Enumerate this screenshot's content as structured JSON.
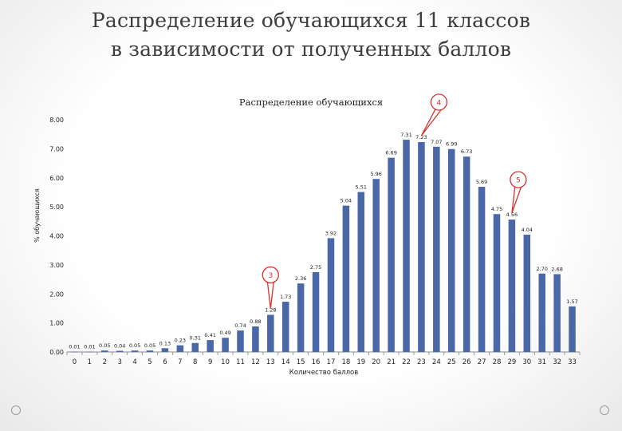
{
  "slide": {
    "title_line1": "Распределение обучающихся 11 классов",
    "title_line2": "в зависимости от полученных баллов"
  },
  "chart_data": {
    "type": "bar",
    "title": "Распределение обучающихся",
    "xlabel": "Количество баллов",
    "ylabel": "% обучающихся",
    "ylim": [
      0,
      8
    ],
    "yticks": [
      "0.00",
      "1.00",
      "2.00",
      "3.00",
      "4.00",
      "5.00",
      "6.00",
      "7.00",
      "8.00"
    ],
    "grid": false,
    "bar_color": "#4a67a8",
    "categories": [
      "0",
      "1",
      "2",
      "3",
      "4",
      "5",
      "6",
      "7",
      "8",
      "9",
      "10",
      "11",
      "12",
      "13",
      "14",
      "15",
      "16",
      "17",
      "18",
      "19",
      "20",
      "21",
      "22",
      "23",
      "24",
      "25",
      "26",
      "27",
      "28",
      "29",
      "30",
      "31",
      "32",
      "33"
    ],
    "values": [
      0.01,
      0.01,
      0.05,
      0.04,
      0.05,
      0.05,
      0.13,
      0.23,
      0.31,
      0.41,
      0.49,
      0.74,
      0.88,
      1.28,
      1.73,
      2.36,
      2.75,
      3.92,
      5.04,
      5.51,
      5.96,
      6.69,
      7.31,
      7.23,
      7.07,
      6.99,
      6.73,
      5.69,
      4.75,
      4.56,
      4.04,
      2.7,
      2.68,
      1.57
    ],
    "labels": [
      "0.01",
      "0.01",
      "0.05",
      "0.04",
      "0.05",
      "0.05",
      "0.13",
      "0.23",
      "0.31",
      "0.41",
      "0.49",
      "0.74",
      "0.88",
      "1.28",
      "1.73",
      "2.36",
      "2.75",
      "3.92",
      "5.04",
      "5.51",
      "5.96",
      "6.69",
      "7.31",
      "7.23",
      "7.07",
      "6.99",
      "6.73",
      "5.69",
      "4.75",
      "4.56",
      "4.04",
      "2.70",
      "2.68",
      "1.57"
    ],
    "annotations": [
      {
        "text": "3",
        "category": "13"
      },
      {
        "text": "4",
        "category": "23"
      },
      {
        "text": "5",
        "category": "29"
      }
    ],
    "annotation_color": "#d9302c"
  }
}
